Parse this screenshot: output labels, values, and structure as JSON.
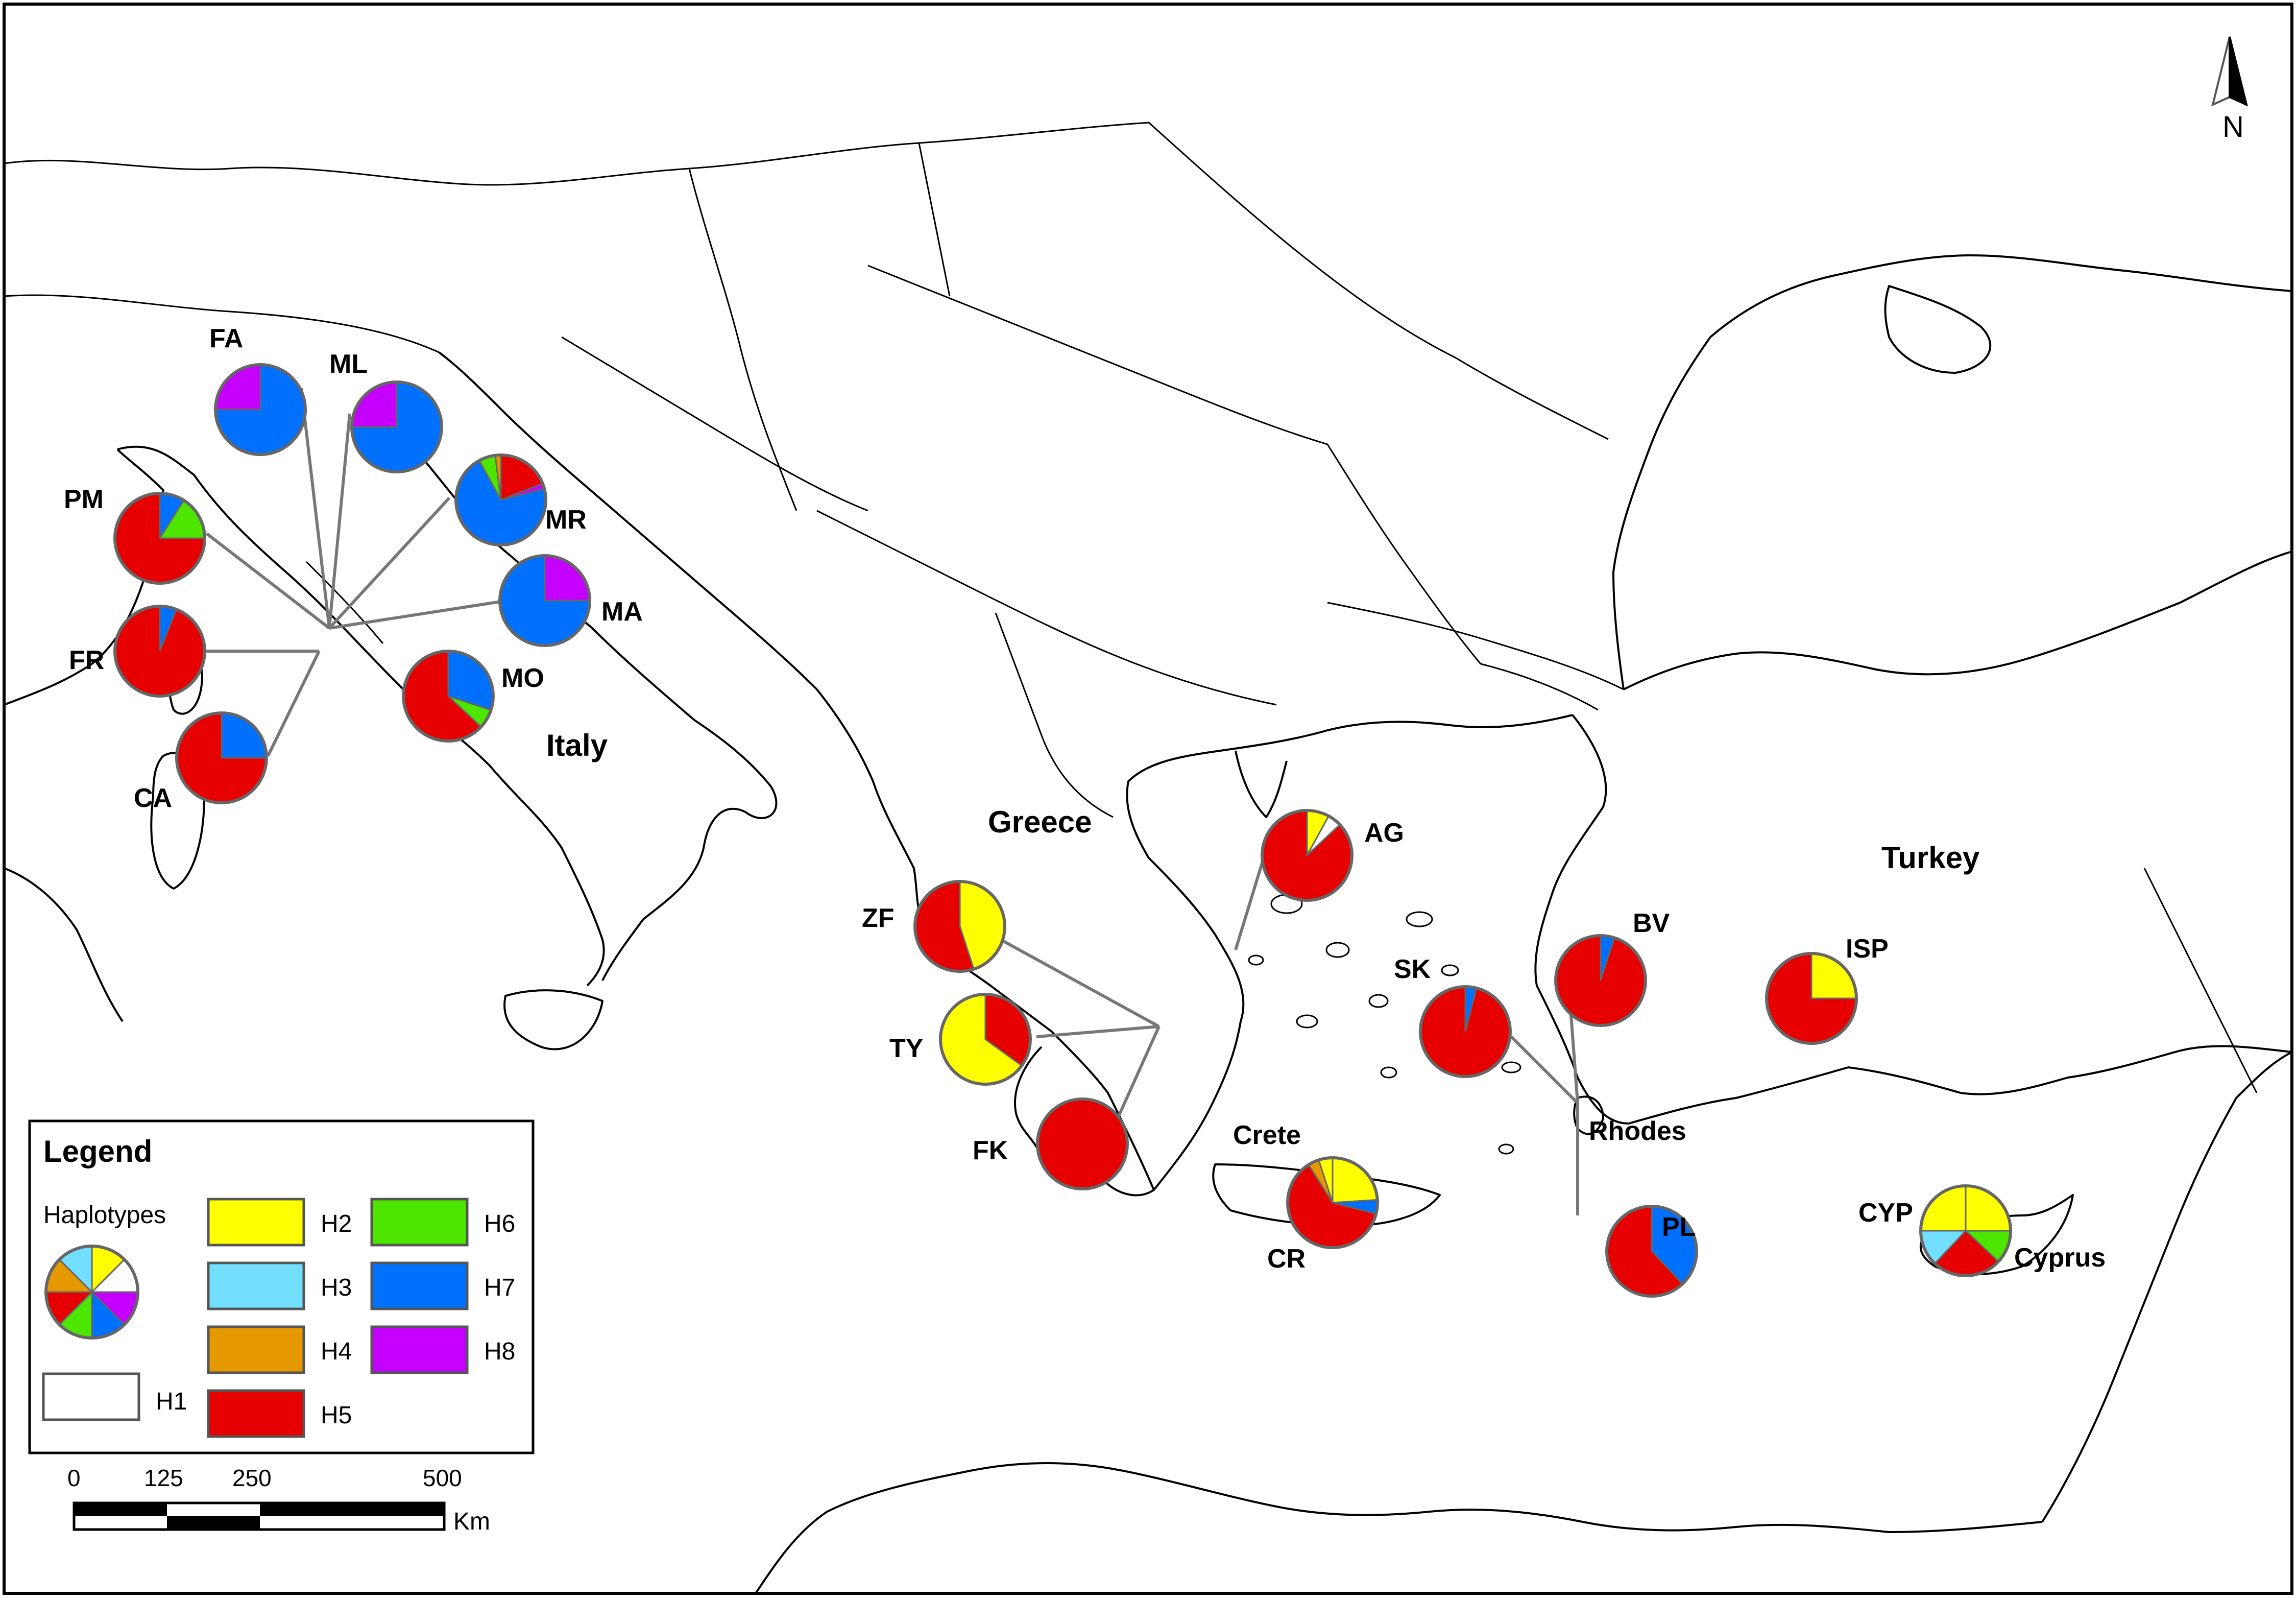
{
  "countries": {
    "italy": "Italy",
    "greece": "Greece",
    "turkey": "Turkey"
  },
  "places": {
    "crete": "Crete",
    "rhodes": "Rhodes",
    "cyprus": "Cyprus"
  },
  "north_arrow": {
    "label": "N"
  },
  "colors": {
    "H1": "#ffffff",
    "H2": "#ffff00",
    "H3": "#73dfff",
    "H4": "#e69800",
    "H5": "#e60000",
    "H6": "#4ce600",
    "H7": "#0070ff",
    "H8": "#c500ff"
  },
  "legend": {
    "title": "Legend",
    "haplotypes_label": "Haplotypes",
    "items": [
      {
        "key": "H1",
        "label": "H1"
      },
      {
        "key": "H2",
        "label": "H2"
      },
      {
        "key": "H3",
        "label": "H3"
      },
      {
        "key": "H4",
        "label": "H4"
      },
      {
        "key": "H5",
        "label": "H5"
      },
      {
        "key": "H6",
        "label": "H6"
      },
      {
        "key": "H7",
        "label": "H7"
      },
      {
        "key": "H8",
        "label": "H8"
      }
    ]
  },
  "scale_bar": {
    "ticks": [
      "0",
      "125",
      "250",
      "500"
    ],
    "unit": "Km"
  },
  "populations": [
    {
      "code": "FA",
      "slices": [
        {
          "h": "H7",
          "f": 0.75
        },
        {
          "h": "H8",
          "f": 0.25
        }
      ]
    },
    {
      "code": "ML",
      "slices": [
        {
          "h": "H7",
          "f": 0.75
        },
        {
          "h": "H8",
          "f": 0.25
        }
      ]
    },
    {
      "code": "MR",
      "slices": [
        {
          "h": "H5",
          "f": 0.19
        },
        {
          "h": "H8",
          "f": 0.02
        },
        {
          "h": "H7",
          "f": 0.71
        },
        {
          "h": "H6",
          "f": 0.06
        },
        {
          "h": "H4",
          "f": 0.02
        }
      ]
    },
    {
      "code": "PM",
      "slices": [
        {
          "h": "H7",
          "f": 0.09
        },
        {
          "h": "H6",
          "f": 0.16
        },
        {
          "h": "H5",
          "f": 0.75
        }
      ]
    },
    {
      "code": "MA",
      "slices": [
        {
          "h": "H8",
          "f": 0.25
        },
        {
          "h": "H7",
          "f": 0.75
        }
      ]
    },
    {
      "code": "FR",
      "slices": [
        {
          "h": "H7",
          "f": 0.06
        },
        {
          "h": "H5",
          "f": 0.94
        }
      ]
    },
    {
      "code": "MO",
      "slices": [
        {
          "h": "H7",
          "f": 0.3
        },
        {
          "h": "H6",
          "f": 0.07
        },
        {
          "h": "H5",
          "f": 0.63
        }
      ]
    },
    {
      "code": "CA",
      "slices": [
        {
          "h": "H7",
          "f": 0.25
        },
        {
          "h": "H5",
          "f": 0.75
        }
      ]
    },
    {
      "code": "AG",
      "slices": [
        {
          "h": "H2",
          "f": 0.08
        },
        {
          "h": "H1",
          "f": 0.05
        },
        {
          "h": "H5",
          "f": 0.87
        }
      ]
    },
    {
      "code": "ZF",
      "slices": [
        {
          "h": "H2",
          "f": 0.45
        },
        {
          "h": "H5",
          "f": 0.55
        }
      ]
    },
    {
      "code": "TY",
      "slices": [
        {
          "h": "H5",
          "f": 0.35
        },
        {
          "h": "H2",
          "f": 0.65
        }
      ]
    },
    {
      "code": "FK",
      "slices": [
        {
          "h": "H5",
          "f": 1.0
        }
      ]
    },
    {
      "code": "CR",
      "slices": [
        {
          "h": "H2",
          "f": 0.24
        },
        {
          "h": "H7",
          "f": 0.05
        },
        {
          "h": "H5",
          "f": 0.62
        },
        {
          "h": "H4",
          "f": 0.04
        },
        {
          "h": "H2",
          "f": 0.05
        }
      ]
    },
    {
      "code": "SK",
      "slices": [
        {
          "h": "H7",
          "f": 0.04
        },
        {
          "h": "H5",
          "f": 0.96
        }
      ]
    },
    {
      "code": "BV",
      "slices": [
        {
          "h": "H7",
          "f": 0.05
        },
        {
          "h": "H5",
          "f": 0.95
        }
      ]
    },
    {
      "code": "PL",
      "slices": [
        {
          "h": "H7",
          "f": 0.38
        },
        {
          "h": "H5",
          "f": 0.62
        }
      ]
    },
    {
      "code": "ISP",
      "slices": [
        {
          "h": "H2",
          "f": 0.25
        },
        {
          "h": "H5",
          "f": 0.75
        }
      ]
    },
    {
      "code": "CYP",
      "slices": [
        {
          "h": "H2",
          "f": 0.25
        },
        {
          "h": "H6",
          "f": 0.12
        },
        {
          "h": "H5",
          "f": 0.25
        },
        {
          "h": "H3",
          "f": 0.13
        },
        {
          "h": "H2",
          "f": 0.25
        }
      ]
    }
  ]
}
